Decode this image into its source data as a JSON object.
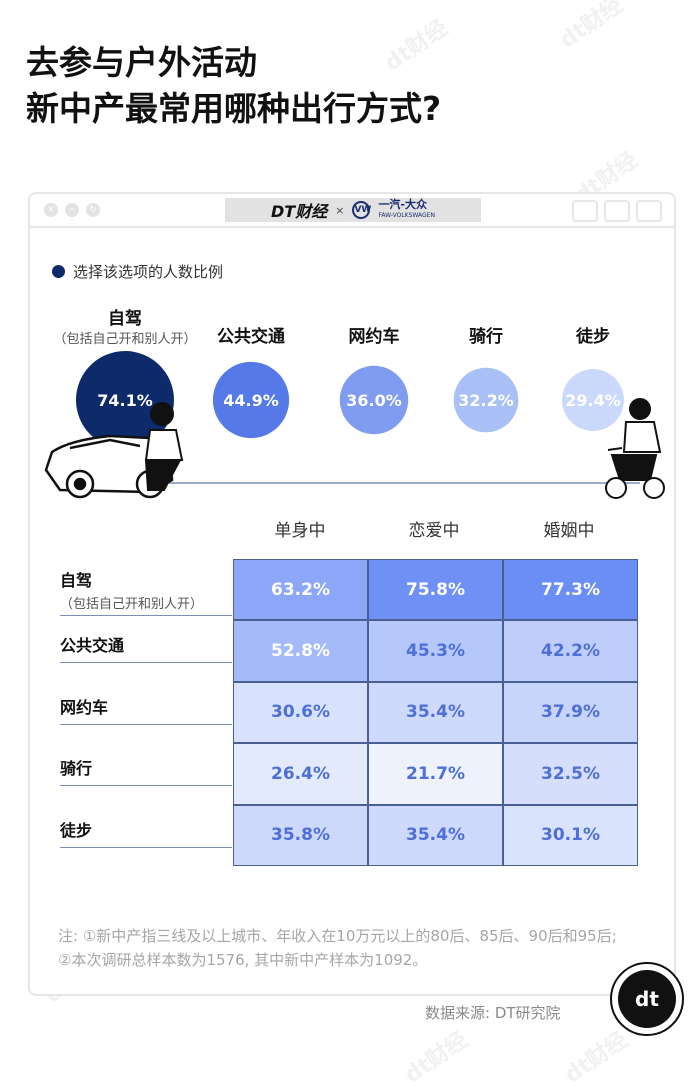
{
  "title": {
    "line1": "去参与户外活动",
    "line2": "新中产最常用哪种出行方式?"
  },
  "browser": {
    "brand_dt": "DT财经",
    "brand_x": "×",
    "brand_faw": "一汽-大众",
    "brand_faw_en": "FAW-VOLKSWAGEN",
    "vw_mark": "VW"
  },
  "legend": {
    "label": "选择该选项的人数比例",
    "color": "#0d2a6b"
  },
  "chart_data": [
    {
      "type": "bubble",
      "categories": [
        "自驾",
        "公共交通",
        "网约车",
        "骑行",
        "徒步"
      ],
      "category_notes": [
        "（包括自己开和别人开）",
        "",
        "",
        "",
        ""
      ],
      "values": [
        74.1,
        44.9,
        36.0,
        32.2,
        29.4
      ],
      "labels": [
        "74.1%",
        "44.9%",
        "36.0%",
        "32.2%",
        "29.4%"
      ],
      "colors": [
        "#0d2a6b",
        "#5679e8",
        "#7f9cf0",
        "#a9c0f7",
        "#c9d8fb"
      ]
    },
    {
      "type": "table",
      "columns": [
        "单身中",
        "恋爱中",
        "婚姻中"
      ],
      "rows": [
        {
          "label": "自驾",
          "note": "（包括自己开和别人开）",
          "values": [
            63.2,
            75.8,
            77.3
          ],
          "labels": [
            "63.2%",
            "75.8%",
            "77.3%"
          ]
        },
        {
          "label": "公共交通",
          "note": "",
          "values": [
            52.8,
            45.3,
            42.2
          ],
          "labels": [
            "52.8%",
            "45.3%",
            "42.2%"
          ]
        },
        {
          "label": "网约车",
          "note": "",
          "values": [
            30.6,
            35.4,
            37.9
          ],
          "labels": [
            "30.6%",
            "35.4%",
            "37.9%"
          ]
        },
        {
          "label": "骑行",
          "note": "",
          "values": [
            26.4,
            21.7,
            32.5
          ],
          "labels": [
            "26.4%",
            "21.7%",
            "32.5%"
          ]
        },
        {
          "label": "徒步",
          "note": "",
          "values": [
            35.8,
            35.4,
            30.1
          ],
          "labels": [
            "35.8%",
            "35.4%",
            "30.1%"
          ]
        }
      ],
      "scale_colors": [
        "#eef2fd",
        "#6b8ef5"
      ]
    }
  ],
  "note": "注: ①新中产指三线及以上城市、年收入在10万元以上的80后、85后、90后和95后; ②本次调研总样本数为1576, 其中新中产样本为1092。",
  "source": "数据来源: DT研究院",
  "logo_text": "dt",
  "watermark": "dt财经"
}
